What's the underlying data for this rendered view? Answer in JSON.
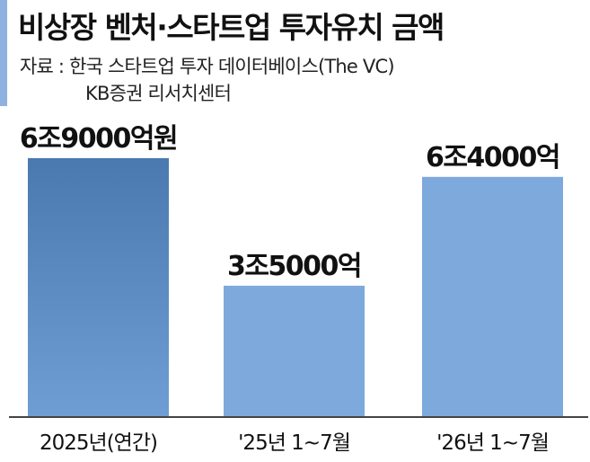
{
  "header": {
    "title": "비상장 벤처·스타트업 투자유치 금액",
    "source_line1": "자료 : 한국 스타트업 투자 데이터베이스(The VC)",
    "source_line2": "KB증권 리서치센터"
  },
  "colors": {
    "accent": "#8db2e0",
    "bar_dark": "#4f7fb4",
    "bar_light": "#7da9dc",
    "baseline": "#444444"
  },
  "chart_data": {
    "type": "bar",
    "title": "비상장 벤처·스타트업 투자유치 금액",
    "categories": [
      "2025년(연간)",
      "'25년 1~7월",
      "'26년 1~7월"
    ],
    "values": [
      69000,
      35000,
      64000
    ],
    "value_labels": [
      "6조9000억원",
      "3조5000억",
      "6조4000억"
    ],
    "unit": "억원",
    "ylim": [
      0,
      80000
    ],
    "grid": false,
    "legend": "none"
  }
}
